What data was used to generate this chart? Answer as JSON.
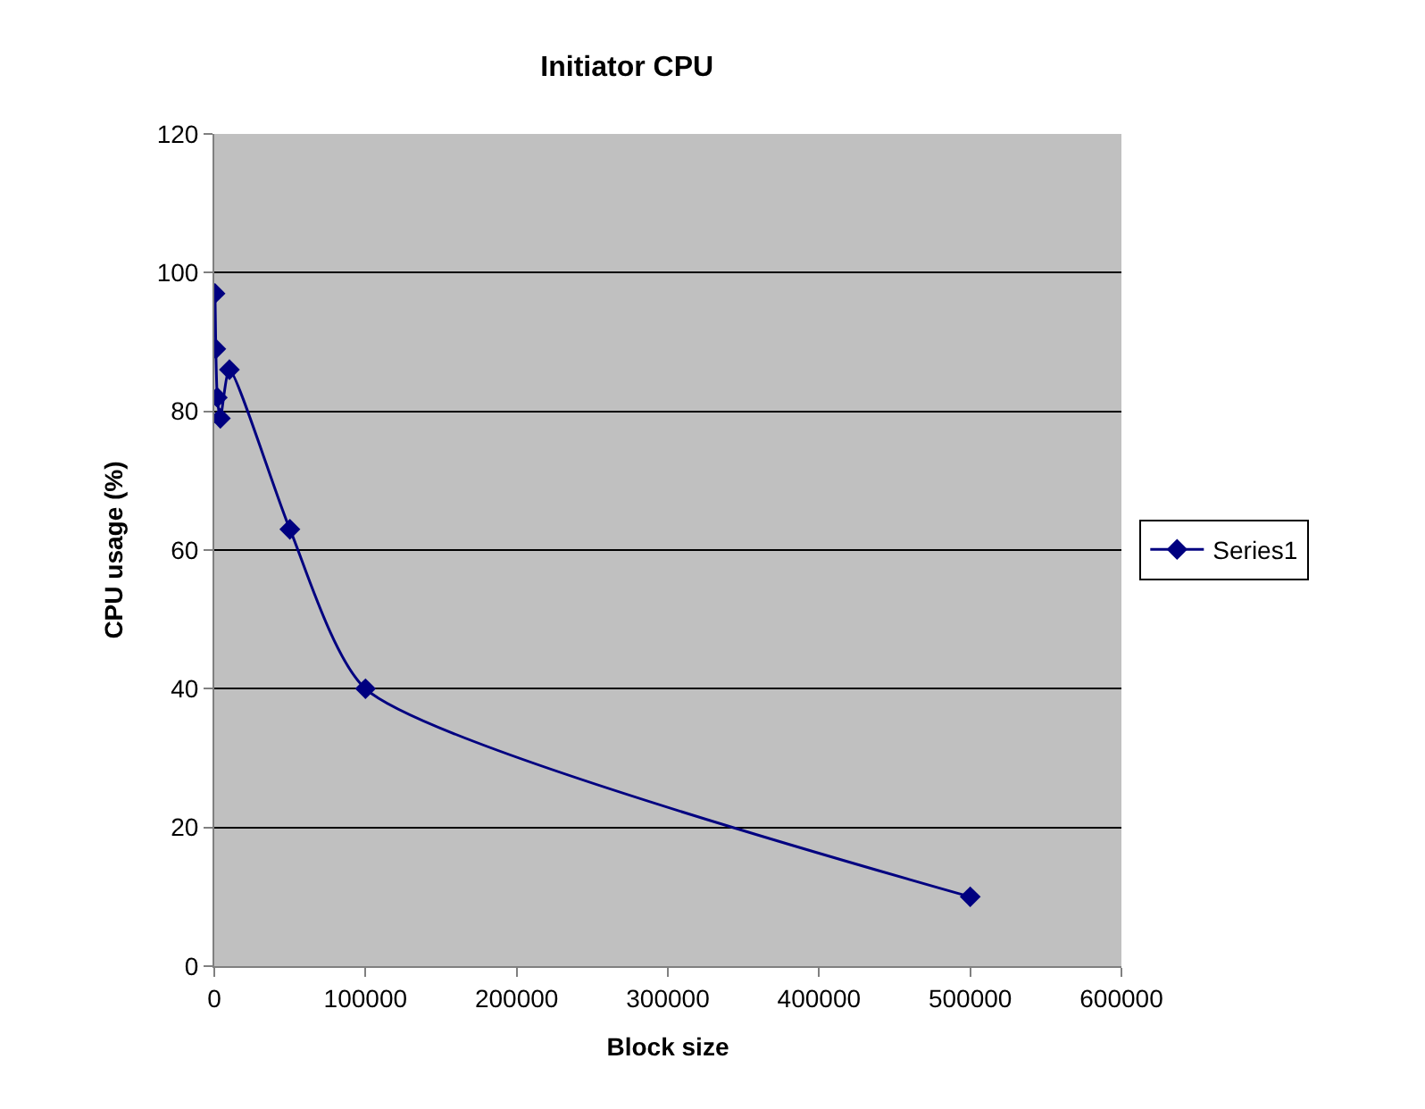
{
  "chart_data": {
    "type": "line",
    "title": "Initiator CPU",
    "xlabel": "Block size",
    "ylabel": "CPU usage (%)",
    "x": [
      500,
      1000,
      2000,
      4000,
      10000,
      50000,
      100000,
      500000
    ],
    "series": [
      {
        "name": "Series1",
        "color": "#000080",
        "values": [
          97,
          89,
          82,
          79,
          86,
          63,
          40,
          10
        ]
      }
    ],
    "xlim": [
      0,
      600000
    ],
    "xticks": [
      0,
      100000,
      200000,
      300000,
      400000,
      500000,
      600000
    ],
    "ylim": [
      0,
      120
    ],
    "yticks": [
      0,
      20,
      40,
      60,
      80,
      100,
      120
    ],
    "grid": "y",
    "legend": "right",
    "marker": "diamond",
    "line_style": "solid"
  }
}
